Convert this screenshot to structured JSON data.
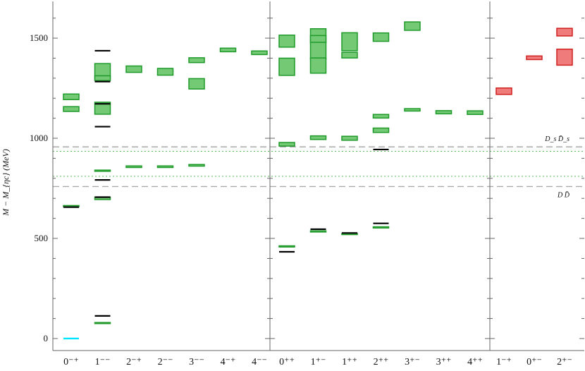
{
  "chart_data": {
    "type": "box-spectrum",
    "ylabel": "M − M_{ηc} (MeV)",
    "ylim": [
      -60,
      1620
    ],
    "yticks": [
      0,
      500,
      1000,
      1500
    ],
    "colors": {
      "lattice_fill": "#74c974",
      "lattice_edge": "#1f9a2a",
      "exotic_fill": "#f07b7b",
      "exotic_edge": "#d02020",
      "experiment": "#000000",
      "reference": "#00e5ff",
      "threshold_dashed": "#aaaaaa",
      "threshold_dotted": "#55bb55"
    },
    "panels": [
      {
        "categories": [
          "0⁻⁺",
          "1⁻⁻",
          "2⁻⁺",
          "2⁻⁻",
          "3⁻⁻",
          "4⁻⁺",
          "4⁻⁻"
        ],
        "boxes": [
          {
            "cat": 0,
            "y": 1207,
            "err": 14
          },
          {
            "cat": 0,
            "y": 1146,
            "err": 12
          },
          {
            "cat": 0,
            "y": 661,
            "err": 3
          },
          {
            "cat": 1,
            "y": 1335,
            "err": 38
          },
          {
            "cat": 1,
            "y": 1300,
            "err": 12
          },
          {
            "cat": 1,
            "y": 1150,
            "err": 30
          },
          {
            "cat": 1,
            "y": 838,
            "err": 3
          },
          {
            "cat": 1,
            "y": 700,
            "err": 6
          },
          {
            "cat": 1,
            "y": 78,
            "err": 2
          },
          {
            "cat": 2,
            "y": 1345,
            "err": 16
          },
          {
            "cat": 2,
            "y": 858,
            "err": 4
          },
          {
            "cat": 3,
            "y": 1332,
            "err": 17
          },
          {
            "cat": 3,
            "y": 858,
            "err": 4
          },
          {
            "cat": 4,
            "y": 1390,
            "err": 12
          },
          {
            "cat": 4,
            "y": 1272,
            "err": 26
          },
          {
            "cat": 4,
            "y": 865,
            "err": 4
          },
          {
            "cat": 5,
            "y": 1441,
            "err": 9
          },
          {
            "cat": 6,
            "y": 1427,
            "err": 9
          }
        ],
        "experiment": [
          {
            "cat": 0,
            "y": 656
          },
          {
            "cat": 1,
            "y": 1437
          },
          {
            "cat": 1,
            "y": 1283
          },
          {
            "cat": 1,
            "y": 1172
          },
          {
            "cat": 1,
            "y": 1058
          },
          {
            "cat": 1,
            "y": 792
          },
          {
            "cat": 1,
            "y": 706
          },
          {
            "cat": 1,
            "y": 113
          }
        ],
        "reference": [
          {
            "cat": 0,
            "y": 0
          }
        ]
      },
      {
        "categories": [
          "0⁺⁺",
          "1⁺⁻",
          "1⁺⁺",
          "2⁺⁺",
          "3⁺⁻",
          "3⁺⁺",
          "4⁺⁺"
        ],
        "boxes": [
          {
            "cat": 0,
            "y": 1485,
            "err": 30
          },
          {
            "cat": 0,
            "y": 1357,
            "err": 43
          },
          {
            "cat": 0,
            "y": 970,
            "err": 9
          },
          {
            "cat": 0,
            "y": 460,
            "err": 3
          },
          {
            "cat": 1,
            "y": 1515,
            "err": 32
          },
          {
            "cat": 1,
            "y": 1495,
            "err": 18
          },
          {
            "cat": 1,
            "y": 1437,
            "err": 42
          },
          {
            "cat": 1,
            "y": 1363,
            "err": 38
          },
          {
            "cat": 1,
            "y": 1003,
            "err": 9
          },
          {
            "cat": 1,
            "y": 535,
            "err": 3
          },
          {
            "cat": 2,
            "y": 1482,
            "err": 45
          },
          {
            "cat": 2,
            "y": 1415,
            "err": 14
          },
          {
            "cat": 2,
            "y": 1000,
            "err": 10
          },
          {
            "cat": 2,
            "y": 522,
            "err": 3
          },
          {
            "cat": 3,
            "y": 1505,
            "err": 21
          },
          {
            "cat": 3,
            "y": 1110,
            "err": 9
          },
          {
            "cat": 3,
            "y": 1040,
            "err": 11
          },
          {
            "cat": 3,
            "y": 555,
            "err": 3
          },
          {
            "cat": 4,
            "y": 1560,
            "err": 21
          },
          {
            "cat": 4,
            "y": 1142,
            "err": 6
          },
          {
            "cat": 5,
            "y": 1130,
            "err": 8
          },
          {
            "cat": 6,
            "y": 1128,
            "err": 9
          }
        ],
        "experiment": [
          {
            "cat": 0,
            "y": 433
          },
          {
            "cat": 1,
            "y": 546
          },
          {
            "cat": 2,
            "y": 527
          },
          {
            "cat": 3,
            "y": 944
          },
          {
            "cat": 3,
            "y": 575
          }
        ],
        "reference": []
      },
      {
        "categories": [
          "1⁻⁺",
          "0⁺⁻",
          "2⁺⁻"
        ],
        "exotic": true,
        "boxes": [
          {
            "cat": 0,
            "y": 1235,
            "err": 16
          },
          {
            "cat": 1,
            "y": 1402,
            "err": 9
          },
          {
            "cat": 2,
            "y": 1530,
            "err": 19
          },
          {
            "cat": 2,
            "y": 1405,
            "err": 40
          }
        ],
        "experiment": [],
        "reference": []
      }
    ],
    "thresholds": [
      {
        "y": 957,
        "style": "dashed",
        "label": "D_s D̄_s"
      },
      {
        "y": 935,
        "style": "dotted",
        "label": ""
      },
      {
        "y": 810,
        "style": "dotted",
        "label": ""
      },
      {
        "y": 759,
        "style": "dashed",
        "label": "D D̄"
      }
    ]
  }
}
